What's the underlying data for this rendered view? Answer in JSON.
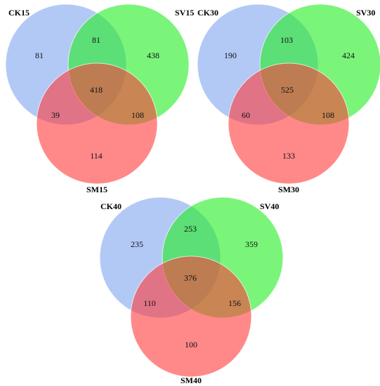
{
  "colors": {
    "set_a": "#7fa5ee",
    "set_b": "#22ee22",
    "set_c": "#ff3a3a"
  },
  "diagrams": [
    {
      "labels": {
        "a": "CK15",
        "b": "SV15",
        "c": "SM15"
      },
      "regions": {
        "a_only": "81",
        "b_only": "438",
        "c_only": "114",
        "ab": "81",
        "ac": "39",
        "bc": "108",
        "abc": "418"
      }
    },
    {
      "labels": {
        "a": "CK30",
        "b": "SV30",
        "c": "SM30"
      },
      "regions": {
        "a_only": "190",
        "b_only": "424",
        "c_only": "133",
        "ab": "103",
        "ac": "60",
        "bc": "108",
        "abc": "525"
      }
    },
    {
      "labels": {
        "a": "CK40",
        "b": "SV40",
        "c": "SM40"
      },
      "regions": {
        "a_only": "235",
        "b_only": "359",
        "c_only": "100",
        "ab": "253",
        "ac": "110",
        "bc": "156",
        "abc": "376"
      }
    }
  ]
}
